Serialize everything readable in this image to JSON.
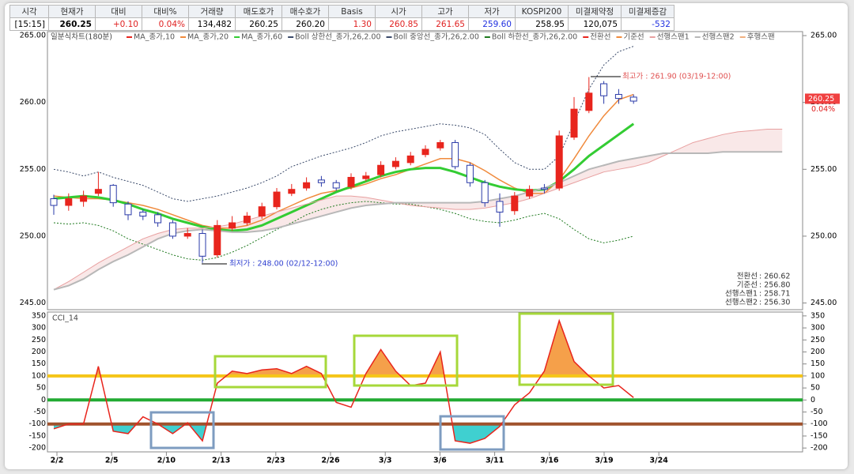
{
  "quote_table": {
    "headers": [
      "시각",
      "현재가",
      "대비",
      "대비%",
      "거래량",
      "매도호가",
      "매수호가",
      "Basis",
      "시가",
      "고가",
      "저가",
      "KOSPI200",
      "미결제약정",
      "미결제증감"
    ],
    "values": [
      "[15:15]",
      "260.25",
      "+0.10",
      "0.04%",
      "134,482",
      "260.25",
      "260.20",
      "1.30",
      "260.85",
      "261.65",
      "259.60",
      "258.95",
      "120,075",
      "-532"
    ],
    "value_colors": [
      "#000",
      "#000",
      "#e02020",
      "#e02020",
      "#000",
      "#000",
      "#000",
      "#e02020",
      "#e02020",
      "#e02020",
      "#2030e0",
      "#000",
      "#000",
      "#2030e0"
    ]
  },
  "main_chart": {
    "title": "일분식차트(180분)",
    "ylim": [
      244.5,
      265.3
    ],
    "yticks": [
      {
        "value": 265,
        "label": "265.00"
      },
      {
        "value": 260,
        "label": "260.00"
      },
      {
        "value": 255,
        "label": "255.00"
      },
      {
        "value": 250,
        "label": "250.00"
      },
      {
        "value": 245,
        "label": "245.00"
      }
    ],
    "up_color": "#e8251d",
    "down_color": "#2a3aa8",
    "candles": {
      "open": [
        252.8,
        252.3,
        252.6,
        253.2,
        253.8,
        252.4,
        251.8,
        251.6,
        251.0,
        250.0,
        250.2,
        248.6,
        250.6,
        251.0,
        251.5,
        252.2,
        253.2,
        253.6,
        254.2,
        254.0,
        253.7,
        254.3,
        254.6,
        255.2,
        255.5,
        256.1,
        256.6,
        257.0,
        255.3,
        254.0,
        252.6,
        251.9,
        253.0,
        253.6,
        253.6,
        257.4,
        259.4,
        261.4,
        260.6,
        260.4
      ],
      "high": [
        253.1,
        253.2,
        253.4,
        254.8,
        253.9,
        252.6,
        252.0,
        251.8,
        251.2,
        250.6,
        250.5,
        251.2,
        251.5,
        251.8,
        252.5,
        253.6,
        253.9,
        254.4,
        254.5,
        254.2,
        254.7,
        254.8,
        255.6,
        255.9,
        256.3,
        256.8,
        257.2,
        257.2,
        255.5,
        254.2,
        253.2,
        253.3,
        253.8,
        253.9,
        257.9,
        260.4,
        261.9,
        261.6,
        261.0,
        260.6
      ],
      "low": [
        251.6,
        251.9,
        252.2,
        253.0,
        252.2,
        251.2,
        251.2,
        250.7,
        249.8,
        249.8,
        248.0,
        248.4,
        250.4,
        250.8,
        251.3,
        252.0,
        253.0,
        253.4,
        253.7,
        253.4,
        253.5,
        254.1,
        254.4,
        255.0,
        255.3,
        255.9,
        256.4,
        255.0,
        253.7,
        252.2,
        250.7,
        251.6,
        252.8,
        253.2,
        253.4,
        257.2,
        259.2,
        259.9,
        259.9,
        259.9
      ],
      "close": [
        252.3,
        252.8,
        253.0,
        253.5,
        252.5,
        251.6,
        251.5,
        251.0,
        250.0,
        250.2,
        248.5,
        250.8,
        251.0,
        251.5,
        252.2,
        253.3,
        253.5,
        254.0,
        254.0,
        253.6,
        254.4,
        254.5,
        255.3,
        255.6,
        256.0,
        256.5,
        257.0,
        255.2,
        254.0,
        252.5,
        251.8,
        253.0,
        253.5,
        253.5,
        257.5,
        259.5,
        260.7,
        260.5,
        260.3,
        260.1
      ]
    },
    "series": [
      {
        "name": "MA_종가,10",
        "color": "#e8251d"
      },
      {
        "name": "MA_종가,20",
        "color": "#f08a3c",
        "width": 1.5,
        "values": [
          253.0,
          252.9,
          252.8,
          252.8,
          252.7,
          252.5,
          252.3,
          252.0,
          251.6,
          251.2,
          250.8,
          250.6,
          250.6,
          250.8,
          251.2,
          251.8,
          252.3,
          252.8,
          253.2,
          253.4,
          253.6,
          253.9,
          254.3,
          254.6,
          255.0,
          255.4,
          255.8,
          255.8,
          255.5,
          254.9,
          254.2,
          253.6,
          253.2,
          253.2,
          254.2,
          255.8,
          257.5,
          259.0,
          260.2,
          260.6,
          null,
          null,
          null,
          null,
          null,
          null,
          null,
          null,
          null,
          null
        ]
      },
      {
        "name": "MA_종가,60",
        "color": "#33cc33",
        "width": 3,
        "values": [
          252.8,
          252.9,
          253.0,
          252.9,
          252.7,
          252.4,
          252.0,
          251.7,
          251.3,
          251.0,
          250.7,
          250.5,
          250.4,
          250.5,
          250.8,
          251.3,
          251.8,
          252.3,
          252.8,
          253.3,
          253.7,
          254.1,
          254.5,
          254.8,
          255.0,
          255.1,
          255.1,
          254.8,
          254.4,
          254.0,
          253.7,
          253.5,
          253.4,
          253.5,
          254.1,
          255.0,
          256.0,
          256.8,
          257.6,
          258.4,
          null,
          null,
          null,
          null,
          null,
          null,
          null,
          null,
          null,
          null
        ]
      },
      {
        "name": "Boll 상한선_종가,26,2.00",
        "color": "#3a4a6a",
        "dash": true,
        "values": [
          255.0,
          254.8,
          254.5,
          254.8,
          254.4,
          254.1,
          253.8,
          253.3,
          252.8,
          252.6,
          252.8,
          253.0,
          253.3,
          253.6,
          254.0,
          254.5,
          255.2,
          255.6,
          256.0,
          256.3,
          256.6,
          257.0,
          257.5,
          257.8,
          258.0,
          258.2,
          258.4,
          258.3,
          258.1,
          257.6,
          256.5,
          255.5,
          255.0,
          255.0,
          256.0,
          258.5,
          261.0,
          262.8,
          263.8,
          264.2,
          null,
          null,
          null,
          null,
          null,
          null,
          null,
          null,
          null,
          null
        ]
      },
      {
        "name": "Boll 중앙선_종가,26,2.00",
        "color": "#3a4a6a"
      },
      {
        "name": "Boll 하한선_종가,26,2.00",
        "color": "#1f7a1f",
        "dash": true,
        "values": [
          251.0,
          250.9,
          251.0,
          250.8,
          250.4,
          249.8,
          249.4,
          249.0,
          248.6,
          248.3,
          248.2,
          248.4,
          248.8,
          249.3,
          249.9,
          250.5,
          251.0,
          251.6,
          252.0,
          252.3,
          252.5,
          252.6,
          252.5,
          252.4,
          252.4,
          252.2,
          252.0,
          251.7,
          251.3,
          251.1,
          251.0,
          251.2,
          251.5,
          251.7,
          251.3,
          250.5,
          249.8,
          249.5,
          249.7,
          250.0,
          null,
          null,
          null,
          null,
          null,
          null,
          null,
          null,
          null,
          null
        ]
      },
      {
        "name": "전환선",
        "color": "#e8251d"
      },
      {
        "name": "기준선",
        "color": "#f08a3c"
      },
      {
        "name": "선행스팬1",
        "color": "#e8a0a0",
        "values": [
          246.0,
          246.6,
          247.3,
          248.0,
          248.6,
          249.2,
          249.8,
          250.2,
          250.5,
          250.6,
          250.6,
          250.7,
          250.9,
          251.2,
          251.5,
          251.8,
          252.1,
          252.4,
          252.7,
          253.0,
          253.0,
          252.9,
          252.7,
          252.5,
          252.3,
          252.2,
          252.1,
          252.0,
          252.0,
          252.1,
          252.3,
          252.5,
          252.8,
          253.2,
          253.6,
          254.0,
          254.4,
          254.8,
          255.0,
          255.2,
          255.5,
          256.0,
          256.5,
          257.0,
          257.3,
          257.6,
          257.8,
          257.9,
          258.0,
          258.0
        ]
      },
      {
        "name": "선행스팬2",
        "color": "#b8b8b8",
        "width": 2,
        "values": [
          246.0,
          246.3,
          246.8,
          247.5,
          248.1,
          248.6,
          249.2,
          249.8,
          250.2,
          250.4,
          250.5,
          250.4,
          250.3,
          250.3,
          250.4,
          250.6,
          250.9,
          251.2,
          251.5,
          251.8,
          252.1,
          252.3,
          252.4,
          252.5,
          252.5,
          252.5,
          252.5,
          252.5,
          252.5,
          252.6,
          252.8,
          253.0,
          253.3,
          253.6,
          254.0,
          254.5,
          255.0,
          255.3,
          255.6,
          255.8,
          256.0,
          256.2,
          256.2,
          256.2,
          256.2,
          256.3,
          256.3,
          256.3,
          256.3,
          256.3
        ]
      },
      {
        "name": "후행스팬",
        "color": "#f0b080"
      }
    ],
    "high_note": "최고가 : 261.90 (03/19-12:00)",
    "low_note": "최저가 : 248.00 (02/12-12:00)",
    "price_tag": 260.25,
    "change_tag": "0.04%",
    "info": [
      {
        "label": "전환선",
        "value": ": 260.62"
      },
      {
        "label": "기준선",
        "value": ": 256.80"
      },
      {
        "label": "선행스팬1",
        "value": ": 258.71"
      },
      {
        "label": "선행스팬2",
        "value": ": 256.30"
      }
    ]
  },
  "cci_chart": {
    "title": "CCI_14",
    "color": "#e8251d",
    "ylim": [
      -216,
      366
    ],
    "yticks": [
      350,
      300,
      250,
      200,
      150,
      100,
      50,
      0,
      -50,
      -100,
      -150,
      -200
    ],
    "levels": [
      {
        "value": 100,
        "color": "#f5c518"
      },
      {
        "value": 0,
        "color": "#22aa33"
      },
      {
        "value": -100,
        "color": "#a0522d"
      }
    ],
    "over_color": "#f5a04a",
    "under_color": "#3fd0d0",
    "values": [
      -120,
      -100,
      -100,
      140,
      -130,
      -140,
      -70,
      -100,
      -140,
      -95,
      -170,
      70,
      120,
      110,
      125,
      130,
      110,
      140,
      110,
      -10,
      -30,
      110,
      210,
      120,
      60,
      70,
      200,
      -170,
      -180,
      -160,
      -110,
      -20,
      30,
      120,
      330,
      160,
      100,
      50,
      60,
      10
    ]
  },
  "x_labels": [
    "2/2",
    "2/5",
    "2/10",
    "2/13",
    "2/23",
    "2/26",
    "3/3",
    "3/6",
    "3/11",
    "3/16",
    "3/19",
    "3/24"
  ]
}
